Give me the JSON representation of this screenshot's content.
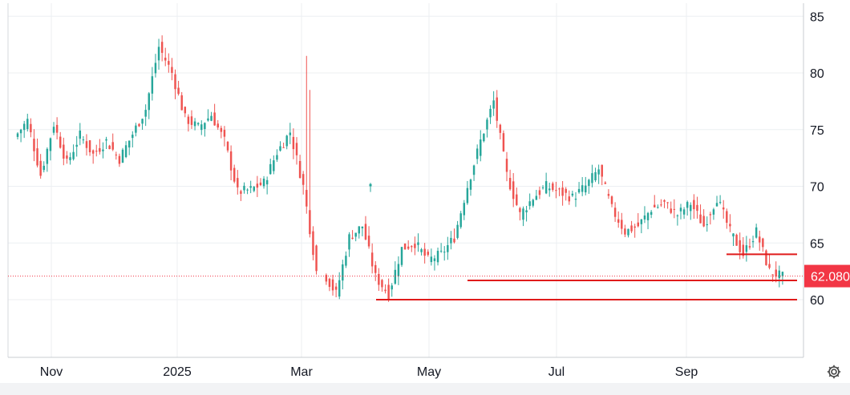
{
  "chart_data": {
    "type": "candlestick",
    "y_axis": {
      "min": 55,
      "max": 86,
      "ticks": [
        60,
        65,
        70,
        75,
        80,
        85
      ],
      "side": "right"
    },
    "x_axis": {
      "labels": [
        "Nov",
        "2025",
        "Mar",
        "May",
        "Jul",
        "Sep"
      ]
    },
    "grid": true,
    "last_price": {
      "label": "62.080",
      "value": 62.08,
      "color": "#f23645"
    },
    "colors": {
      "up": "#26a69a",
      "down": "#ef5350",
      "line": "#e01b1b",
      "grid": "#eceff2"
    },
    "support_lines": [
      {
        "start": 60,
        "end": 60
      },
      {
        "start": 61.7,
        "end": 61.7
      },
      {
        "start": 64.0,
        "end": 64.0
      }
    ],
    "anchors": [
      {
        "v": 74.3
      },
      {
        "v": 75.8
      },
      {
        "v": 71.0
      },
      {
        "v": 75.5
      },
      {
        "v": 72.0
      },
      {
        "v": 74.5
      },
      {
        "v": 72.8
      },
      {
        "v": 74.0
      },
      {
        "v": 72.4
      },
      {
        "v": 74.6
      },
      {
        "v": 76.8
      },
      {
        "v": 82.3
      },
      {
        "v": 80.0
      },
      {
        "v": 76.0
      },
      {
        "v": 75.2
      },
      {
        "v": 76.3
      },
      {
        "v": 74.0
      },
      {
        "v": 69.5
      },
      {
        "v": 69.7
      },
      {
        "v": 70.3
      },
      {
        "v": 73.0
      },
      {
        "v": 74.8
      },
      {
        "v": 70.0
      },
      {
        "v": 62.5
      },
      {
        "v": 60.5
      },
      {
        "v": 65.5
      },
      {
        "v": 66.5
      },
      {
        "v": 62.0
      },
      {
        "v": 60.5
      },
      {
        "v": 64.5
      },
      {
        "v": 65.0
      },
      {
        "v": 63.5
      },
      {
        "v": 64.0
      },
      {
        "v": 65.5
      },
      {
        "v": 70.0
      },
      {
        "v": 74.0
      },
      {
        "v": 77.5
      },
      {
        "v": 71.0
      },
      {
        "v": 67.5
      },
      {
        "v": 69.0
      },
      {
        "v": 70.0
      },
      {
        "v": 69.5
      },
      {
        "v": 69.0
      },
      {
        "v": 70.0
      },
      {
        "v": 71.5
      },
      {
        "v": 68.0
      },
      {
        "v": 66.0
      },
      {
        "v": 66.5
      },
      {
        "v": 68.0
      },
      {
        "v": 68.5
      },
      {
        "v": 67.5
      },
      {
        "v": 68.5
      },
      {
        "v": 66.5
      },
      {
        "v": 69.0
      },
      {
        "v": 66.0
      },
      {
        "v": 64.0
      },
      {
        "v": 66.0
      },
      {
        "v": 62.5
      },
      {
        "v": 62.0
      }
    ],
    "candles_per_segment": 4,
    "gap_after_anchor": [
      22
    ],
    "gap_candle": {
      "open": 70.0,
      "high": 70.3,
      "low": 69.5,
      "close": 70.2
    }
  }
}
